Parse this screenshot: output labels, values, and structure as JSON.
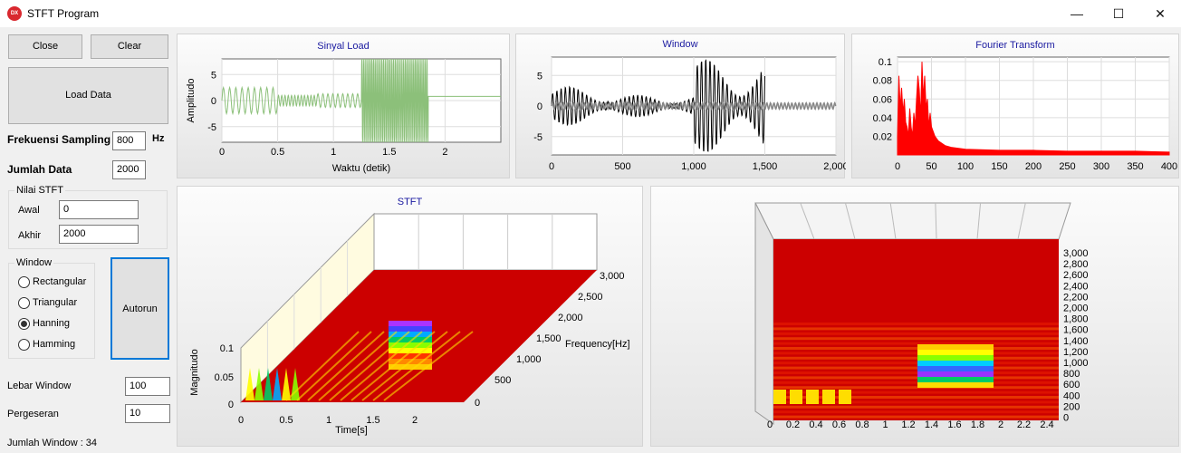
{
  "window": {
    "title": "STFT Program",
    "icon_text": "DX",
    "minimize": "—",
    "maximize": "☐",
    "close": "✕"
  },
  "controls": {
    "close_label": "Close",
    "clear_label": "Clear",
    "load_label": "Load Data",
    "sampling_label": "Frekuensi Sampling",
    "sampling_value": "800",
    "sampling_unit": "Hz",
    "jumlah_label": "Jumlah Data",
    "jumlah_value": "2000",
    "stft_group": "Nilai STFT",
    "awal_label": "Awal",
    "awal_value": "0",
    "akhir_label": "Akhir",
    "akhir_value": "2000",
    "window_group": "Window",
    "window_options": [
      "Rectangular",
      "Triangular",
      "Hanning",
      "Hamming"
    ],
    "window_selected": "Hanning",
    "autorun_label": "Autorun",
    "lebar_label": "Lebar Window",
    "lebar_value": "100",
    "geser_label": "Pergeseran",
    "geser_value": "10",
    "jumlah_window": "Jumlah Window : 34"
  },
  "colors": {
    "signal": "#8cc07a",
    "window": "#000000",
    "fft": "#ff0000",
    "surface": "#cc0000"
  },
  "chart_data": [
    {
      "type": "line",
      "title": "Sinyal Load",
      "xlabel": "Waktu (detik)",
      "ylabel": "Amplitudo",
      "xticks": [
        "0",
        "0.5",
        "1",
        "1.5",
        "2"
      ],
      "yticks": [
        "5",
        "0",
        "-5"
      ],
      "xlim": [
        0,
        2.5
      ],
      "ylim": [
        -8,
        8
      ],
      "segments": [
        {
          "t_start": 0,
          "t_end": 0.5,
          "amplitude": 2.5,
          "cycles": 9
        },
        {
          "t_start": 0.5,
          "t_end": 0.85,
          "amplitude": 1,
          "cycles": 12
        },
        {
          "t_start": 0.85,
          "t_end": 1.25,
          "amplitude": 1.3,
          "cycles": 9
        },
        {
          "t_start": 1.25,
          "t_end": 1.85,
          "amplitude": 8,
          "cycles": 40
        },
        {
          "t_start": 1.85,
          "t_end": 2.5,
          "amplitude": 0.8,
          "cycles": 0
        }
      ]
    },
    {
      "type": "line",
      "title": "Window",
      "xticks": [
        "0",
        "500",
        "1,000",
        "1,500",
        "2,000"
      ],
      "yticks": [
        "5",
        "0",
        "-5"
      ],
      "xlim": [
        0,
        2000
      ],
      "ylim": [
        -8,
        8
      ]
    },
    {
      "type": "area",
      "title": "Fourier Transform",
      "xticks": [
        "0",
        "50",
        "100",
        "150",
        "200",
        "250",
        "300",
        "350",
        "400"
      ],
      "yticks": [
        "0.1",
        "0.08",
        "0.06",
        "0.04",
        "0.02"
      ],
      "xlim": [
        0,
        400
      ],
      "ylim": [
        0,
        0.105
      ],
      "x": [
        0,
        2,
        4,
        6,
        8,
        10,
        12,
        14,
        16,
        18,
        20,
        22,
        24,
        26,
        28,
        30,
        32,
        34,
        36,
        38,
        40,
        42,
        44,
        46,
        48,
        50,
        55,
        60,
        70,
        80,
        100,
        150,
        200,
        250,
        300,
        350,
        400
      ],
      "y": [
        0.02,
        0.085,
        0.05,
        0.072,
        0.045,
        0.06,
        0.035,
        0.03,
        0.02,
        0.05,
        0.03,
        0.02,
        0.045,
        0.03,
        0.06,
        0.085,
        0.07,
        0.04,
        0.1,
        0.06,
        0.085,
        0.05,
        0.06,
        0.03,
        0.045,
        0.03,
        0.02,
        0.015,
        0.01,
        0.008,
        0.006,
        0.005,
        0.005,
        0.004,
        0.004,
        0.004,
        0.003
      ]
    },
    {
      "type": "heatmap",
      "title": "STFT",
      "xlabel": "Time[s]",
      "ylabel": "Magnitudo",
      "zlabel": "Frequency[Hz]",
      "xticks": [
        "0",
        "0.5",
        "1",
        "1.5",
        "2"
      ],
      "yticks": [
        "0.1",
        "0.05",
        "0"
      ],
      "zticks": [
        "3,000",
        "2,500",
        "2,000",
        "1,500",
        "1,000",
        "500",
        "0"
      ]
    },
    {
      "type": "heatmap",
      "xticks": [
        "0",
        "0.2",
        "0.4",
        "0.6",
        "0.8",
        "1",
        "1.2",
        "1.4",
        "1.6",
        "1.8",
        "2",
        "2.2",
        "2.4"
      ],
      "yticks": [
        "3,000",
        "2,800",
        "2,600",
        "2,400",
        "2,200",
        "2,000",
        "1,800",
        "1,600",
        "1,400",
        "1,200",
        "1,000",
        "800",
        "600",
        "400",
        "200",
        "0"
      ]
    }
  ]
}
